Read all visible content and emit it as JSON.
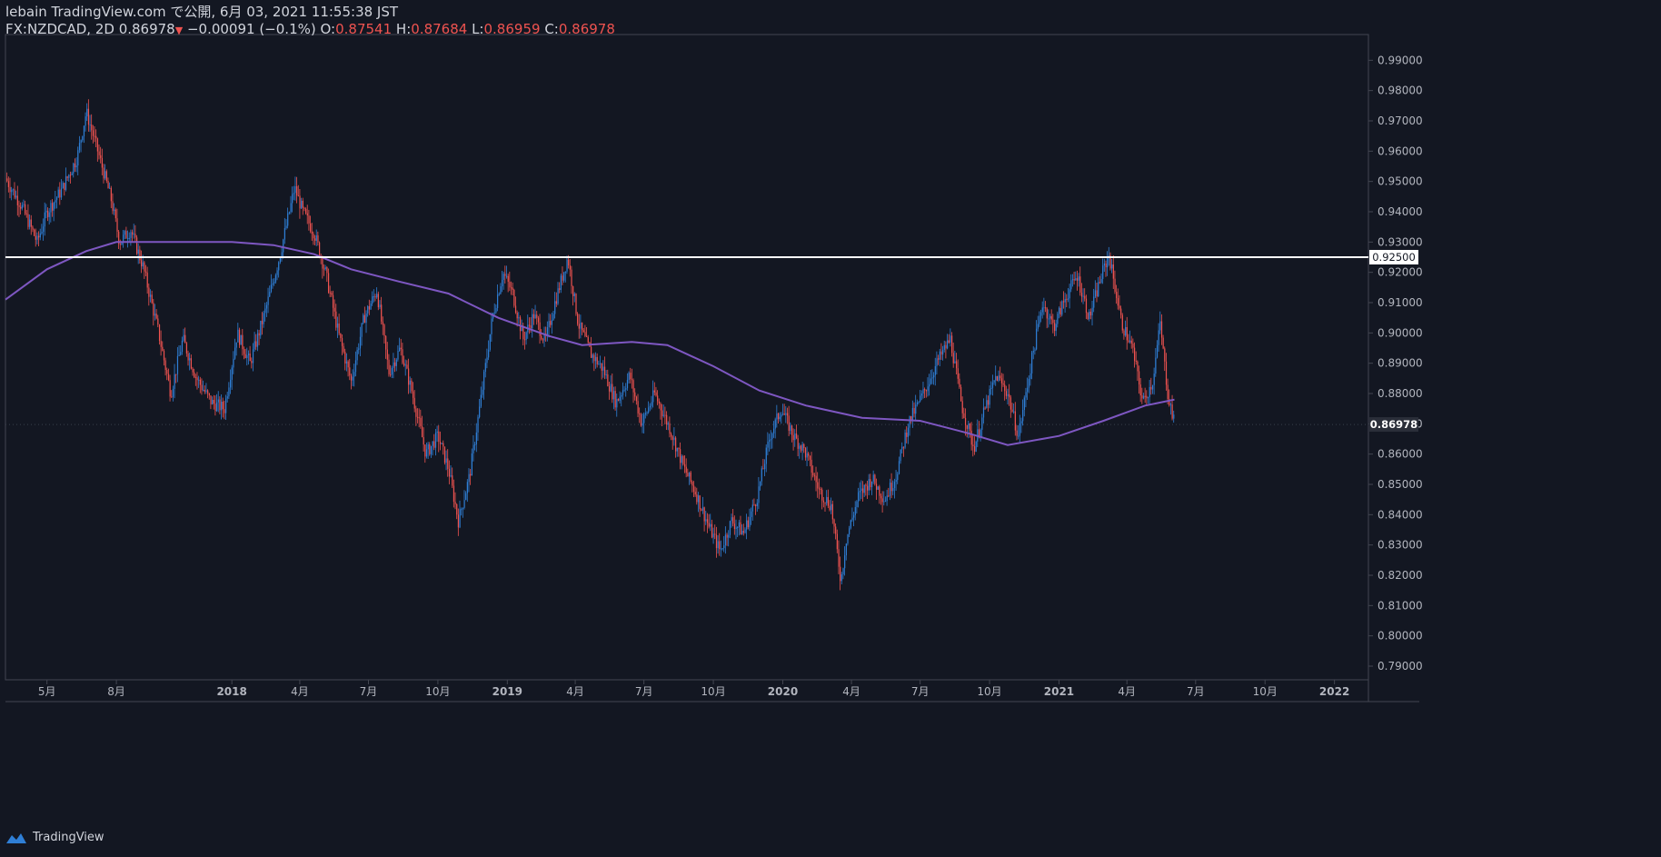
{
  "header": {
    "published": "lebain TradingView.com で公開, 6月 03, 2021 11:55:38 JST",
    "symbol_line": "FX:NZDCAD, 2D 0.86978",
    "change": "−0.00091 (−0.1%)",
    "open_label": "O:",
    "open": "0.87541",
    "high_label": "H:",
    "high": "0.87684",
    "low_label": "L:",
    "low": "0.86959",
    "close_label": "C:",
    "close": "0.86978"
  },
  "footer": {
    "brand": "TradingView"
  },
  "colors": {
    "background": "#131722",
    "up": "#2f7fd6",
    "down": "#ef5350",
    "ma": "#7e57c2",
    "hline": "#ffffff",
    "axis_text": "#b2b5be",
    "border": "#434651"
  },
  "chart_data": {
    "type": "candlestick",
    "title": "",
    "ylim": [
      0.7855,
      0.9985
    ],
    "y_ticks": [
      "0.99000",
      "0.98000",
      "0.97000",
      "0.96000",
      "0.95000",
      "0.94000",
      "0.93000",
      "0.92000",
      "0.91000",
      "0.90000",
      "0.89000",
      "0.88000",
      "0.87000",
      "0.86000",
      "0.85000",
      "0.84000",
      "0.83000",
      "0.82000",
      "0.81000",
      "0.80000",
      "0.79000"
    ],
    "x_ticks": [
      "5月",
      "8月",
      "2018",
      "4月",
      "7月",
      "10月",
      "2019",
      "4月",
      "7月",
      "10月",
      "2020",
      "4月",
      "7月",
      "10月",
      "2021",
      "4月",
      "7月",
      "10月",
      "2022"
    ],
    "x_range": [
      "2017-03-07",
      "2022-02-15"
    ],
    "x_tick_dates": [
      "2017-05-01",
      "2017-08-01",
      "2018-01-01",
      "2018-04-01",
      "2018-07-01",
      "2018-10-01",
      "2019-01-01",
      "2019-04-01",
      "2019-07-01",
      "2019-10-01",
      "2020-01-01",
      "2020-04-01",
      "2020-07-01",
      "2020-10-01",
      "2021-01-01",
      "2021-04-01",
      "2021-07-01",
      "2021-10-01",
      "2022-01-01"
    ],
    "horizontal_line": {
      "value": 0.925,
      "label": "0.92500"
    },
    "last_price": {
      "value": 0.86978,
      "label": "0.86978"
    },
    "price_path": [
      [
        "2017-03-07",
        0.951
      ],
      [
        "2017-03-28",
        0.942
      ],
      [
        "2017-04-18",
        0.93
      ],
      [
        "2017-05-01",
        0.94
      ],
      [
        "2017-05-20",
        0.947
      ],
      [
        "2017-06-10",
        0.958
      ],
      [
        "2017-06-22",
        0.973
      ],
      [
        "2017-07-05",
        0.962
      ],
      [
        "2017-07-25",
        0.944
      ],
      [
        "2017-08-05",
        0.93
      ],
      [
        "2017-08-20",
        0.934
      ],
      [
        "2017-09-05",
        0.922
      ],
      [
        "2017-09-25",
        0.901
      ],
      [
        "2017-10-12",
        0.88
      ],
      [
        "2017-10-28",
        0.898
      ],
      [
        "2017-11-15",
        0.885
      ],
      [
        "2017-12-05",
        0.877
      ],
      [
        "2017-12-22",
        0.875
      ],
      [
        "2018-01-08",
        0.9
      ],
      [
        "2018-01-25",
        0.89
      ],
      [
        "2018-02-15",
        0.908
      ],
      [
        "2018-03-05",
        0.925
      ],
      [
        "2018-03-25",
        0.948
      ],
      [
        "2018-04-05",
        0.94
      ],
      [
        "2018-04-20",
        0.933
      ],
      [
        "2018-05-05",
        0.92
      ],
      [
        "2018-05-22",
        0.9
      ],
      [
        "2018-06-08",
        0.884
      ],
      [
        "2018-06-25",
        0.905
      ],
      [
        "2018-07-12",
        0.914
      ],
      [
        "2018-07-28",
        0.887
      ],
      [
        "2018-08-12",
        0.895
      ],
      [
        "2018-08-28",
        0.88
      ],
      [
        "2018-09-15",
        0.86
      ],
      [
        "2018-10-01",
        0.866
      ],
      [
        "2018-10-15",
        0.855
      ],
      [
        "2018-10-28",
        0.838
      ],
      [
        "2018-11-12",
        0.853
      ],
      [
        "2018-11-28",
        0.88
      ],
      [
        "2018-12-12",
        0.905
      ],
      [
        "2018-12-26",
        0.92
      ],
      [
        "2019-01-08",
        0.913
      ],
      [
        "2019-01-22",
        0.898
      ],
      [
        "2019-02-05",
        0.906
      ],
      [
        "2019-02-20",
        0.897
      ],
      [
        "2019-03-05",
        0.91
      ],
      [
        "2019-03-22",
        0.925
      ],
      [
        "2019-04-05",
        0.903
      ],
      [
        "2019-04-22",
        0.893
      ],
      [
        "2019-05-08",
        0.888
      ],
      [
        "2019-05-25",
        0.877
      ],
      [
        "2019-06-12",
        0.886
      ],
      [
        "2019-06-28",
        0.87
      ],
      [
        "2019-07-15",
        0.88
      ],
      [
        "2019-08-05",
        0.868
      ],
      [
        "2019-08-22",
        0.856
      ],
      [
        "2019-09-08",
        0.847
      ],
      [
        "2019-09-25",
        0.836
      ],
      [
        "2019-10-10",
        0.828
      ],
      [
        "2019-10-25",
        0.838
      ],
      [
        "2019-11-10",
        0.834
      ],
      [
        "2019-11-28",
        0.846
      ],
      [
        "2019-12-15",
        0.866
      ],
      [
        "2019-12-30",
        0.875
      ],
      [
        "2020-01-15",
        0.866
      ],
      [
        "2020-01-30",
        0.861
      ],
      [
        "2020-02-18",
        0.848
      ],
      [
        "2020-03-05",
        0.843
      ],
      [
        "2020-03-18",
        0.818
      ],
      [
        "2020-03-25",
        0.832
      ],
      [
        "2020-04-10",
        0.846
      ],
      [
        "2020-04-28",
        0.852
      ],
      [
        "2020-05-15",
        0.845
      ],
      [
        "2020-05-30",
        0.853
      ],
      [
        "2020-06-15",
        0.87
      ],
      [
        "2020-07-05",
        0.88
      ],
      [
        "2020-07-25",
        0.891
      ],
      [
        "2020-08-10",
        0.898
      ],
      [
        "2020-08-25",
        0.876
      ],
      [
        "2020-09-10",
        0.862
      ],
      [
        "2020-09-25",
        0.875
      ],
      [
        "2020-10-10",
        0.886
      ],
      [
        "2020-10-25",
        0.88
      ],
      [
        "2020-11-08",
        0.866
      ],
      [
        "2020-11-25",
        0.89
      ],
      [
        "2020-12-10",
        0.91
      ],
      [
        "2020-12-25",
        0.902
      ],
      [
        "2021-01-10",
        0.912
      ],
      [
        "2021-01-25",
        0.919
      ],
      [
        "2021-02-10",
        0.905
      ],
      [
        "2021-02-25",
        0.918
      ],
      [
        "2021-03-08",
        0.926
      ],
      [
        "2021-03-25",
        0.903
      ],
      [
        "2021-04-08",
        0.895
      ],
      [
        "2021-04-22",
        0.877
      ],
      [
        "2021-05-05",
        0.884
      ],
      [
        "2021-05-15",
        0.903
      ],
      [
        "2021-05-25",
        0.88
      ],
      [
        "2021-06-03",
        0.86978
      ]
    ],
    "ma_path": [
      [
        "2017-03-07",
        0.911
      ],
      [
        "2017-05-01",
        0.921
      ],
      [
        "2017-06-22",
        0.927
      ],
      [
        "2017-08-01",
        0.93
      ],
      [
        "2017-10-01",
        0.93
      ],
      [
        "2018-01-01",
        0.93
      ],
      [
        "2018-02-25",
        0.929
      ],
      [
        "2018-04-20",
        0.926
      ],
      [
        "2018-06-08",
        0.921
      ],
      [
        "2018-08-10",
        0.917
      ],
      [
        "2018-10-15",
        0.913
      ],
      [
        "2018-12-20",
        0.905
      ],
      [
        "2019-02-25",
        0.899
      ],
      [
        "2019-04-10",
        0.896
      ],
      [
        "2019-06-15",
        0.897
      ],
      [
        "2019-08-01",
        0.896
      ],
      [
        "2019-10-01",
        0.889
      ],
      [
        "2019-12-01",
        0.881
      ],
      [
        "2020-02-01",
        0.876
      ],
      [
        "2020-04-15",
        0.872
      ],
      [
        "2020-07-01",
        0.871
      ],
      [
        "2020-09-01",
        0.867
      ],
      [
        "2020-10-25",
        0.863
      ],
      [
        "2021-01-01",
        0.866
      ],
      [
        "2021-03-01",
        0.871
      ],
      [
        "2021-04-25",
        0.876
      ],
      [
        "2021-06-03",
        0.878
      ]
    ]
  }
}
